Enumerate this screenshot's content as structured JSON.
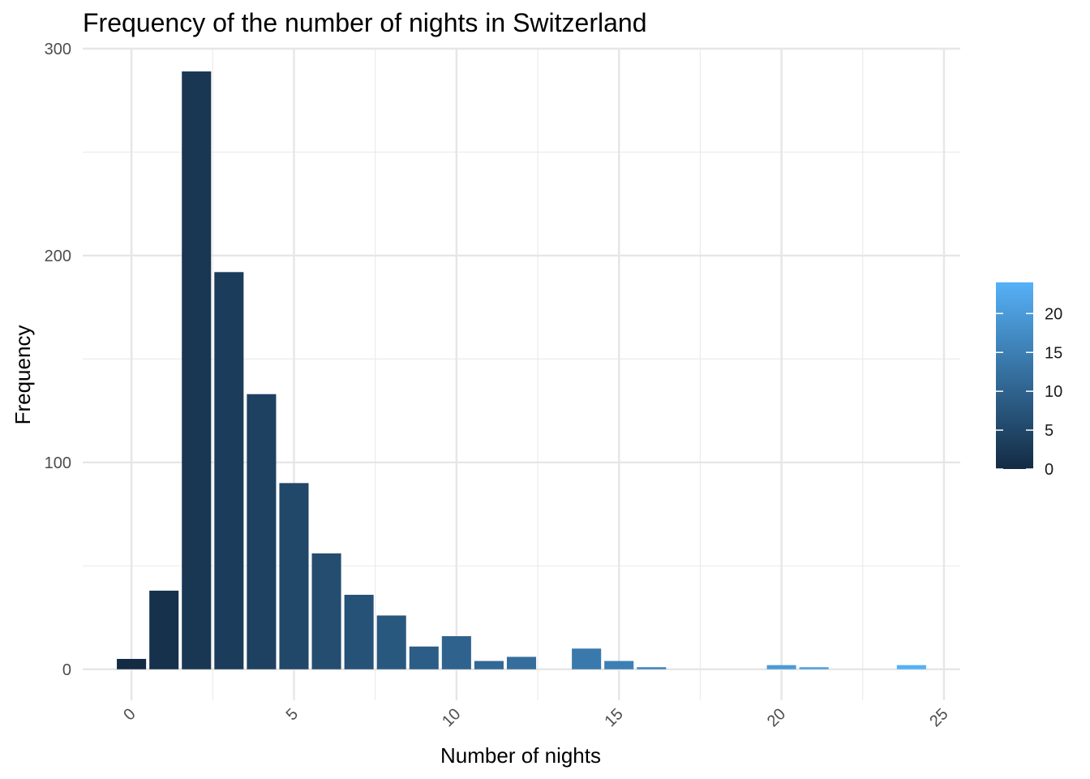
{
  "chart_data": {
    "type": "bar",
    "title": "Frequency of the number of nights in Switzerland",
    "xlabel": "Number of nights",
    "ylabel": "Frequency",
    "x": [
      0,
      1,
      2,
      3,
      4,
      5,
      6,
      7,
      8,
      9,
      10,
      11,
      12,
      14,
      15,
      16,
      20,
      21,
      24
    ],
    "values": [
      5,
      38,
      289,
      192,
      133,
      90,
      56,
      36,
      26,
      11,
      16,
      4,
      6,
      10,
      4,
      1,
      2,
      1,
      2
    ],
    "xlim": [
      -1.5,
      25.5
    ],
    "ylim": [
      -15,
      300
    ],
    "x_ticks": [
      "0",
      "5",
      "10",
      "15",
      "20",
      "25"
    ],
    "y_ticks": [
      "0",
      "100",
      "200",
      "300"
    ],
    "grid": true,
    "legend": {
      "placement": "right",
      "type": "colorbar",
      "range": [
        0,
        24
      ],
      "ticks": [
        "0",
        "5",
        "10",
        "15",
        "20"
      ],
      "color_low": "#132B43",
      "color_high": "#56B1F7"
    }
  }
}
